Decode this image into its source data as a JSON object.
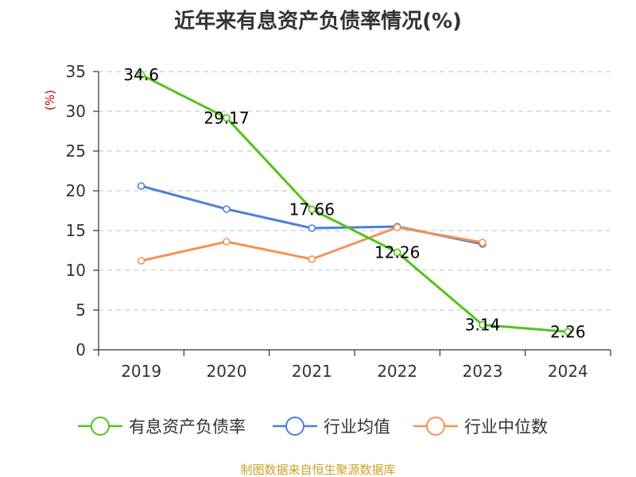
{
  "chart_data": {
    "type": "line",
    "title": "近年来有息资产负债率情况(%)",
    "ylabel": "(%)",
    "xlabel": "",
    "ylim": [
      0,
      35
    ],
    "yticks": [
      0,
      5,
      10,
      15,
      20,
      25,
      30,
      35
    ],
    "grid": true,
    "categories": [
      "2019",
      "2020",
      "2021",
      "2022",
      "2023",
      "2024"
    ],
    "series": [
      {
        "name": "有息资产负债率",
        "color": "#52c41a",
        "values": [
          34.6,
          29.17,
          17.66,
          12.26,
          3.14,
          2.26
        ],
        "labels": [
          "34.6",
          "29.17",
          "17.66",
          "12.26",
          "3.14",
          "2.26"
        ]
      },
      {
        "name": "行业均值",
        "color": "#4e7fd5",
        "values": [
          20.6,
          17.7,
          15.3,
          15.5,
          13.3,
          null
        ]
      },
      {
        "name": "行业中位数",
        "color": "#f39256",
        "values": [
          11.2,
          13.6,
          11.4,
          15.4,
          13.5,
          null
        ]
      }
    ],
    "legend_position": "bottom",
    "source": "制图数据来自恒生聚源数据库"
  }
}
